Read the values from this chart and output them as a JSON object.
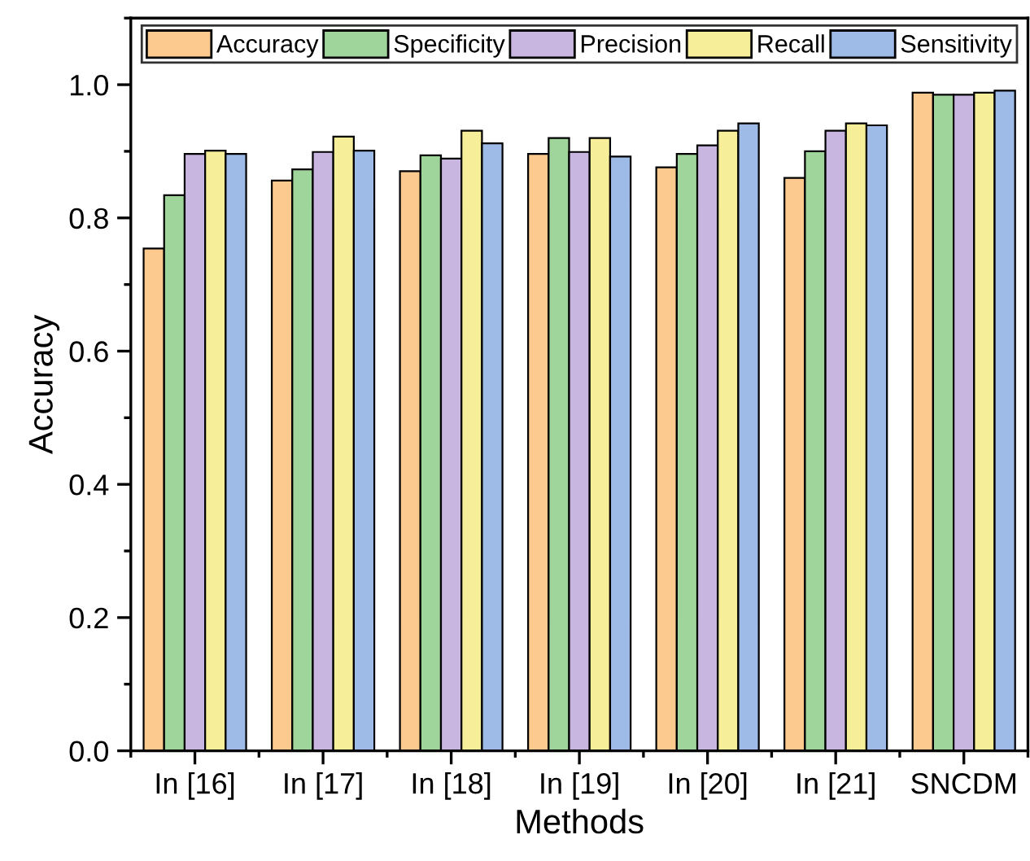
{
  "chart_data": {
    "type": "bar",
    "xlabel": "Methods",
    "ylabel": "Accuracy",
    "categories": [
      "In [16]",
      "In [17]",
      "In [18]",
      "In [19]",
      "In [20]",
      "In [21]",
      "SNCDM"
    ],
    "series": [
      {
        "name": "Accuracy",
        "color": "#fcc98f",
        "values": [
          0.754,
          0.856,
          0.87,
          0.896,
          0.876,
          0.86,
          0.988
        ]
      },
      {
        "name": "Specificity",
        "color": "#9fd49a",
        "values": [
          0.834,
          0.873,
          0.894,
          0.92,
          0.896,
          0.9,
          0.985
        ]
      },
      {
        "name": "Precision",
        "color": "#c9b6e0",
        "values": [
          0.896,
          0.899,
          0.889,
          0.899,
          0.909,
          0.931,
          0.985
        ]
      },
      {
        "name": "Recall",
        "color": "#f7ee9a",
        "values": [
          0.901,
          0.922,
          0.931,
          0.92,
          0.931,
          0.942,
          0.988
        ]
      },
      {
        "name": "Sensitivity",
        "color": "#9dbbe6",
        "values": [
          0.896,
          0.901,
          0.912,
          0.892,
          0.942,
          0.939,
          0.991
        ]
      }
    ],
    "ylim": [
      0,
      1.1
    ],
    "yticks": [
      {
        "value": 0,
        "label": "0.0"
      },
      {
        "value": 0.2,
        "label": "0.2"
      },
      {
        "value": 0.4,
        "label": "0.4"
      },
      {
        "value": 0.6,
        "label": "0.6"
      },
      {
        "value": 0.8,
        "label": "0.8"
      },
      {
        "value": 1.0,
        "label": "1.0"
      }
    ],
    "grid": false,
    "legend": "top"
  }
}
